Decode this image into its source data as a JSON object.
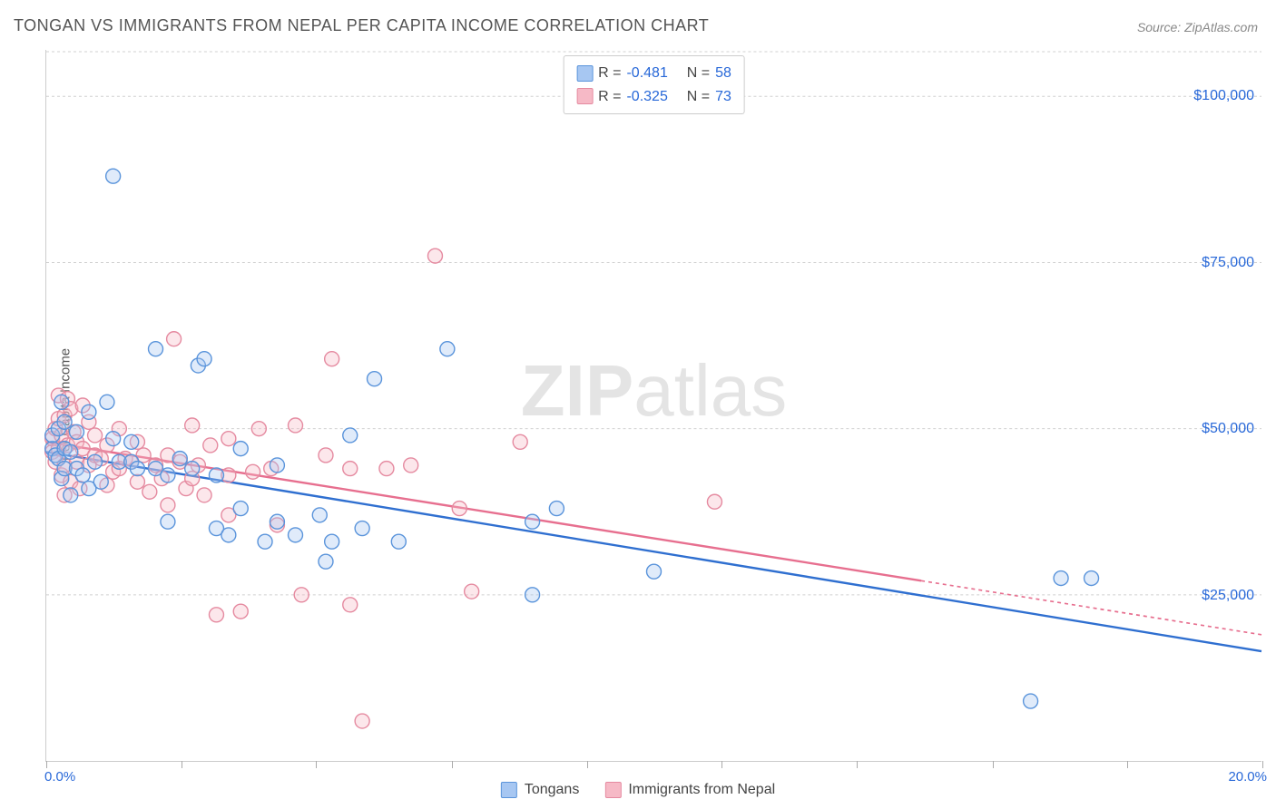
{
  "title": "TONGAN VS IMMIGRANTS FROM NEPAL PER CAPITA INCOME CORRELATION CHART",
  "source": "Source: ZipAtlas.com",
  "watermark_prefix": "ZIP",
  "watermark_suffix": "atlas",
  "watermark_opacity": 0.1,
  "watermark_fontsize": 80,
  "title_fontsize": 18,
  "title_color": "#555555",
  "chart": {
    "type": "scatter",
    "background_color": "#ffffff",
    "grid_color": "#d0d0d0",
    "axis_color": "#cccccc",
    "tick_color": "#aaaaaa",
    "label_color": "#555555",
    "value_label_color": "#2868d8",
    "label_fontsize": 15,
    "tick_label_fontsize": 16,
    "xlim": [
      0,
      20
    ],
    "ylim": [
      0,
      107000
    ],
    "y_gridlines": [
      25000,
      50000,
      75000,
      100000
    ],
    "y_tick_labels": [
      "$25,000",
      "$50,000",
      "$75,000",
      "$100,000"
    ],
    "x_minor_ticks": [
      0,
      2.22,
      4.44,
      6.67,
      8.89,
      11.11,
      13.33,
      15.56,
      17.78,
      20
    ],
    "x_end_labels": {
      "start": "0.0%",
      "end": "20.0%"
    },
    "y_axis_title": "Per Capita Income",
    "marker_radius": 8,
    "marker_stroke_width": 1.4,
    "marker_fill_opacity": 0.35,
    "regression_line_width": 2.4,
    "regression_dash_extension": "4,4"
  },
  "series": [
    {
      "key": "tongans",
      "label": "Tongans",
      "color_fill": "#a7c7f2",
      "color_stroke": "#5a94db",
      "line_color": "#2f6fd0",
      "R": "-0.481",
      "N": "58",
      "regression": {
        "x1": 0,
        "y1": 46500,
        "x2": 20,
        "y2": 16500,
        "solid_until_x": 20
      },
      "points": [
        [
          0.1,
          47000
        ],
        [
          0.1,
          49000
        ],
        [
          0.15,
          46000
        ],
        [
          0.2,
          45500
        ],
        [
          0.2,
          50000
        ],
        [
          0.25,
          42500
        ],
        [
          0.25,
          54000
        ],
        [
          0.3,
          47000
        ],
        [
          0.3,
          44000
        ],
        [
          0.3,
          51000
        ],
        [
          0.4,
          46500
        ],
        [
          0.4,
          40000
        ],
        [
          0.5,
          44000
        ],
        [
          0.5,
          49500
        ],
        [
          0.6,
          43000
        ],
        [
          0.7,
          52500
        ],
        [
          0.7,
          41000
        ],
        [
          0.8,
          45000
        ],
        [
          0.9,
          42000
        ],
        [
          1.0,
          54000
        ],
        [
          1.1,
          48500
        ],
        [
          1.1,
          88000
        ],
        [
          1.2,
          45000
        ],
        [
          1.4,
          45000
        ],
        [
          1.5,
          44000
        ],
        [
          1.4,
          48000
        ],
        [
          1.8,
          44000
        ],
        [
          1.8,
          62000
        ],
        [
          2.0,
          43000
        ],
        [
          2.0,
          36000
        ],
        [
          2.2,
          45500
        ],
        [
          2.4,
          44000
        ],
        [
          2.5,
          59500
        ],
        [
          2.6,
          60500
        ],
        [
          2.8,
          35000
        ],
        [
          2.8,
          43000
        ],
        [
          3.0,
          34000
        ],
        [
          3.2,
          38000
        ],
        [
          3.2,
          47000
        ],
        [
          3.6,
          33000
        ],
        [
          3.8,
          44500
        ],
        [
          3.8,
          36000
        ],
        [
          4.1,
          34000
        ],
        [
          4.5,
          37000
        ],
        [
          4.7,
          33000
        ],
        [
          4.6,
          30000
        ],
        [
          5.0,
          49000
        ],
        [
          5.2,
          35000
        ],
        [
          5.4,
          57500
        ],
        [
          5.8,
          33000
        ],
        [
          6.6,
          62000
        ],
        [
          8.0,
          25000
        ],
        [
          8.0,
          36000
        ],
        [
          8.4,
          38000
        ],
        [
          10.0,
          28500
        ],
        [
          16.7,
          27500
        ],
        [
          17.2,
          27500
        ],
        [
          16.2,
          9000
        ]
      ]
    },
    {
      "key": "nepal",
      "label": "Immigrants from Nepal",
      "color_fill": "#f6b9c6",
      "color_stroke": "#e58aa0",
      "line_color": "#e76f8f",
      "R": "-0.325",
      "N": "73",
      "regression": {
        "x1": 0,
        "y1": 48000,
        "x2": 20,
        "y2": 19000,
        "solid_until_x": 14.4
      },
      "points": [
        [
          0.1,
          46500
        ],
        [
          0.1,
          48500
        ],
        [
          0.15,
          50000
        ],
        [
          0.15,
          45000
        ],
        [
          0.2,
          51500
        ],
        [
          0.2,
          47000
        ],
        [
          0.2,
          55000
        ],
        [
          0.25,
          43000
        ],
        [
          0.25,
          49000
        ],
        [
          0.3,
          52000
        ],
        [
          0.3,
          44500
        ],
        [
          0.3,
          40000
        ],
        [
          0.35,
          47500
        ],
        [
          0.35,
          54500
        ],
        [
          0.4,
          42000
        ],
        [
          0.4,
          53000
        ],
        [
          0.45,
          49500
        ],
        [
          0.5,
          45000
        ],
        [
          0.5,
          48000
        ],
        [
          0.55,
          41000
        ],
        [
          0.6,
          47000
        ],
        [
          0.6,
          53500
        ],
        [
          0.7,
          44500
        ],
        [
          0.7,
          51000
        ],
        [
          0.8,
          46000
        ],
        [
          0.8,
          49000
        ],
        [
          0.9,
          45500
        ],
        [
          1.0,
          47500
        ],
        [
          1.0,
          41500
        ],
        [
          1.1,
          43500
        ],
        [
          1.2,
          44000
        ],
        [
          1.2,
          50000
        ],
        [
          1.3,
          45500
        ],
        [
          1.4,
          45000
        ],
        [
          1.5,
          42000
        ],
        [
          1.5,
          48000
        ],
        [
          1.6,
          46000
        ],
        [
          1.7,
          40500
        ],
        [
          1.8,
          44500
        ],
        [
          1.9,
          42500
        ],
        [
          2.0,
          46000
        ],
        [
          2.0,
          38500
        ],
        [
          2.1,
          63500
        ],
        [
          2.2,
          45000
        ],
        [
          2.3,
          41000
        ],
        [
          2.5,
          44500
        ],
        [
          2.4,
          50500
        ],
        [
          2.4,
          42500
        ],
        [
          2.6,
          40000
        ],
        [
          2.7,
          47500
        ],
        [
          2.8,
          22000
        ],
        [
          3.0,
          43000
        ],
        [
          3.0,
          48500
        ],
        [
          3.0,
          37000
        ],
        [
          3.2,
          22500
        ],
        [
          3.4,
          43500
        ],
        [
          3.5,
          50000
        ],
        [
          3.7,
          44000
        ],
        [
          3.8,
          35500
        ],
        [
          4.1,
          50500
        ],
        [
          4.2,
          25000
        ],
        [
          4.6,
          46000
        ],
        [
          4.7,
          60500
        ],
        [
          5.0,
          23500
        ],
        [
          5.0,
          44000
        ],
        [
          5.2,
          6000
        ],
        [
          5.6,
          44000
        ],
        [
          6.0,
          44500
        ],
        [
          6.4,
          76000
        ],
        [
          6.8,
          38000
        ],
        [
          7.8,
          48000
        ],
        [
          7.0,
          25500
        ],
        [
          11.0,
          39000
        ]
      ]
    }
  ],
  "top_legend": {
    "rows": [
      {
        "swatch_series": "tongans",
        "r_label": "R =",
        "n_label": "N ="
      },
      {
        "swatch_series": "nepal",
        "r_label": "R =",
        "n_label": "N ="
      }
    ]
  }
}
